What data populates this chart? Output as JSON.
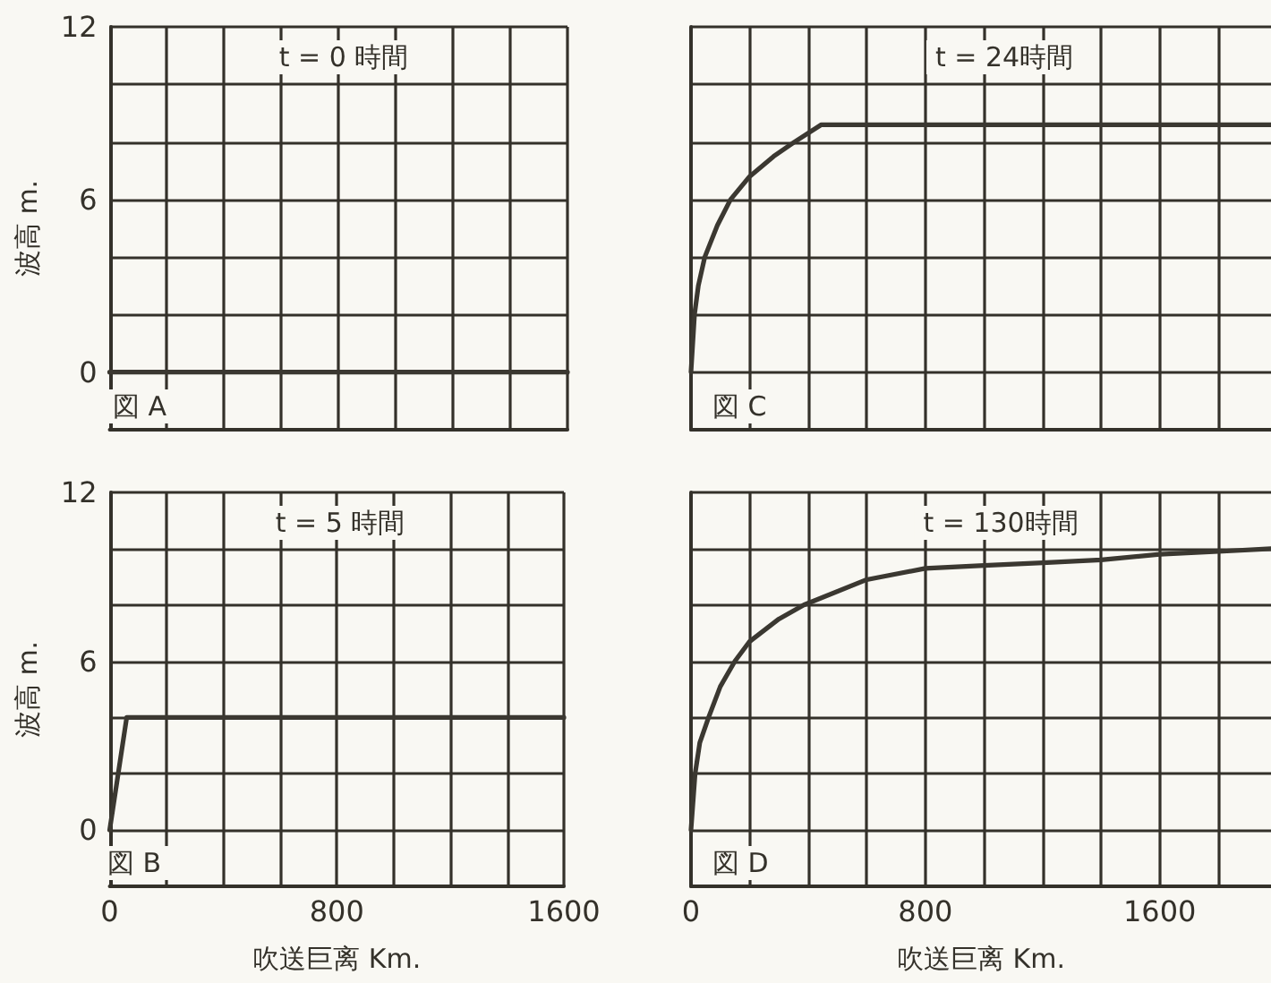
{
  "chart_data": [
    {
      "type": "line",
      "title": "t = 0 時間",
      "ylabel": "波高 m.",
      "x": [
        0,
        1600
      ],
      "values": [
        0,
        0
      ],
      "color": "#3b3831",
      "xlim": [
        0,
        1600
      ],
      "xticks": [
        0,
        {
          "value": 200,
          "label": null
        },
        {
          "value": 400,
          "label": null
        },
        {
          "value": 600,
          "label": null
        },
        800,
        {
          "value": 1000,
          "label": null
        },
        {
          "value": 1200,
          "label": null
        },
        {
          "value": 1400,
          "label": null
        },
        1600
      ],
      "ylim": [
        -2,
        12
      ],
      "yticks": [
        0,
        {
          "value": 2,
          "label": null
        },
        {
          "value": 4,
          "label": null
        },
        6,
        {
          "value": 8,
          "label": null
        },
        {
          "value": 10,
          "label": null
        },
        12
      ],
      "grid": true,
      "marker": "none",
      "tick_labels": "y",
      "annotations": [
        "図 A"
      ]
    },
    {
      "type": "line",
      "title": "t = 24時間",
      "x": [
        0,
        12,
        25,
        47,
        90,
        135,
        200,
        282,
        353,
        445,
        1000,
        1980
      ],
      "values": [
        0,
        2,
        3,
        4,
        5.1,
        6,
        6.8,
        7.5,
        8,
        8.6,
        8.6,
        8.6
      ],
      "color": "#3b3831",
      "xlim": [
        0,
        1980
      ],
      "xticks": [
        0,
        {
          "value": 200,
          "label": null
        },
        {
          "value": 400,
          "label": null
        },
        {
          "value": 600,
          "label": null
        },
        800,
        {
          "value": 1000,
          "label": null
        },
        {
          "value": 1200,
          "label": null
        },
        {
          "value": 1400,
          "label": null
        },
        1600,
        {
          "value": 1800,
          "label": null
        }
      ],
      "ylim": [
        -2,
        12
      ],
      "yticks": [
        0,
        {
          "value": 2,
          "label": null
        },
        {
          "value": 4,
          "label": null
        },
        6,
        {
          "value": 8,
          "label": null
        },
        {
          "value": 10,
          "label": null
        },
        12
      ],
      "grid": true,
      "marker": "none",
      "tick_labels": false,
      "annotations": [
        "図 C"
      ]
    },
    {
      "type": "line",
      "title": "t = 5 時間",
      "xlabel": "吹送巨离 Km.",
      "ylabel": "波高 m.",
      "x": [
        0,
        60,
        1600
      ],
      "values": [
        0,
        4,
        4
      ],
      "color": "#3b3831",
      "xlim": [
        0,
        1600
      ],
      "xticks": [
        0,
        {
          "value": 200,
          "label": null
        },
        {
          "value": 400,
          "label": null
        },
        {
          "value": 600,
          "label": null
        },
        800,
        {
          "value": 1000,
          "label": null
        },
        {
          "value": 1200,
          "label": null
        },
        {
          "value": 1400,
          "label": null
        },
        1600
      ],
      "ylim": [
        -2,
        12
      ],
      "yticks": [
        0,
        {
          "value": 2,
          "label": null
        },
        {
          "value": 4,
          "label": null
        },
        6,
        {
          "value": 8,
          "label": null
        },
        {
          "value": 10,
          "label": null
        },
        12
      ],
      "grid": true,
      "marker": "none",
      "annotations": [
        "図 B"
      ]
    },
    {
      "type": "line",
      "title": "t = 130時間",
      "xlabel": "吹送巨离 Km.",
      "x": [
        0,
        14,
        30,
        60,
        100,
        150,
        200,
        300,
        385,
        600,
        800,
        1000,
        1200,
        1400,
        1600,
        1800,
        1980
      ],
      "values": [
        0,
        2,
        3.1,
        4,
        5.1,
        6,
        6.7,
        7.5,
        8,
        8.9,
        9.3,
        9.4,
        9.5,
        9.6,
        9.8,
        9.9,
        10
      ],
      "color": "#3b3831",
      "xlim": [
        0,
        1980
      ],
      "xticks": [
        0,
        {
          "value": 200,
          "label": null
        },
        {
          "value": 400,
          "label": null
        },
        {
          "value": 600,
          "label": null
        },
        800,
        {
          "value": 1000,
          "label": null
        },
        {
          "value": 1200,
          "label": null
        },
        {
          "value": 1400,
          "label": null
        },
        1600,
        {
          "value": 1800,
          "label": null
        }
      ],
      "ylim": [
        -2,
        12
      ],
      "yticks": [
        0,
        {
          "value": 2,
          "label": null
        },
        {
          "value": 4,
          "label": null
        },
        6,
        {
          "value": 8,
          "label": null
        },
        {
          "value": 10,
          "label": null
        },
        12
      ],
      "grid": true,
      "marker": "none",
      "tick_labels": "x",
      "annotations": [
        "図 D"
      ]
    }
  ]
}
